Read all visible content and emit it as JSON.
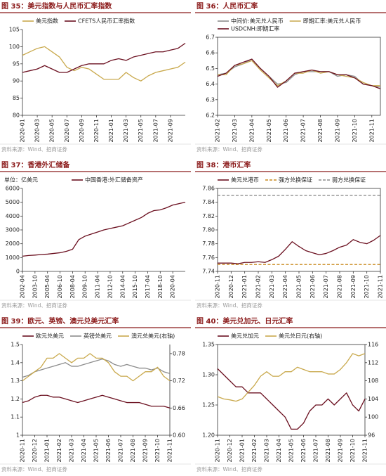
{
  "chart_data": [
    {
      "type": "line",
      "title": "图 35：美元指数与人民币汇率指数",
      "source": "资料来源：Wind、招商证券",
      "legend": "top",
      "frame": false,
      "categories": [
        "2020-01",
        null,
        "2020-03",
        null,
        "2020-05",
        null,
        "2020-07",
        null,
        "2020-09",
        null,
        "2020-11",
        null,
        "2021-01",
        null,
        "2021-03",
        null,
        "2021-05",
        null,
        "2021-07",
        null,
        "2021-09",
        null,
        null
      ],
      "series": [
        {
          "name": "美元指数",
          "color": "#c9a94d",
          "values": [
            97.5,
            98.5,
            99.5,
            100,
            98.5,
            97,
            94,
            93,
            94,
            93.5,
            92,
            90.5,
            90.5,
            90.5,
            92.5,
            91,
            90,
            91.5,
            92.5,
            93,
            93.5,
            94,
            95.5
          ]
        },
        {
          "name": "CFETS人民币汇率指数",
          "color": "#6b1020",
          "values": [
            92.5,
            93,
            93.5,
            94.5,
            93.5,
            92.5,
            92.5,
            93.5,
            94.5,
            95,
            95,
            95,
            96,
            96.5,
            96,
            97,
            97.5,
            98,
            98.5,
            98.5,
            99,
            99.5,
            101
          ]
        }
      ],
      "ylim": [
        80,
        105
      ],
      "yticks": [
        80,
        85,
        90,
        95,
        100,
        105
      ]
    },
    {
      "type": "line",
      "title": "图 36：人民币汇率",
      "source": "资料来源：Wind、招商证券",
      "legend": "top",
      "frame": true,
      "categories": [
        "2021-02",
        null,
        "2021-03",
        null,
        "2021-04",
        null,
        "2021-05",
        null,
        "2021-06",
        null,
        "2021-07",
        null,
        "2021-08",
        null,
        "2021-09",
        null,
        "2021-10",
        null,
        "2021-11",
        null
      ],
      "series": [
        {
          "name": "中间价:美元兑人民币",
          "color": "#8c8c8c",
          "values": [
            6.46,
            6.47,
            6.51,
            6.53,
            6.56,
            6.5,
            6.45,
            6.4,
            6.41,
            6.46,
            6.48,
            6.48,
            6.48,
            6.48,
            6.45,
            6.46,
            6.45,
            6.4,
            6.39,
            6.38
          ]
        },
        {
          "name": "即期汇率:美元兑人民币",
          "color": "#c9a94d",
          "values": [
            6.46,
            6.46,
            6.52,
            6.53,
            6.55,
            6.49,
            6.44,
            6.39,
            6.42,
            6.47,
            6.47,
            6.49,
            6.47,
            6.48,
            6.46,
            6.45,
            6.44,
            6.41,
            6.39,
            6.39
          ]
        },
        {
          "name": "USDCNH:即期汇率",
          "color": "#6b1020",
          "values": [
            6.45,
            6.47,
            6.52,
            6.54,
            6.56,
            6.5,
            6.45,
            6.38,
            6.42,
            6.47,
            6.48,
            6.49,
            6.48,
            6.48,
            6.46,
            6.46,
            6.44,
            6.4,
            6.39,
            6.37
          ]
        }
      ],
      "ylim": [
        6.2,
        6.7
      ],
      "yticks": [
        6.2,
        6.3,
        6.4,
        6.5,
        6.6,
        6.7
      ]
    },
    {
      "type": "line",
      "title": "图 37：香港外汇储备",
      "source": "资料来源：Wind、招商证券",
      "unit": "单位：亿美元",
      "legend": "top",
      "frame": false,
      "categories": [
        "2002-04",
        null,
        "2003-10",
        null,
        "2005-04",
        null,
        "2006-10",
        null,
        "2008-04",
        null,
        "2009-10",
        null,
        "2011-04",
        null,
        "2012-10",
        null,
        "2014-04",
        null,
        "2015-10",
        null,
        "2017-04",
        null,
        "2018-10",
        null,
        "2020-04",
        null,
        null
      ],
      "series": [
        {
          "name": "中国香港:外汇储备资产",
          "color": "#6b1020",
          "values": [
            1100,
            1150,
            1180,
            1220,
            1250,
            1300,
            1350,
            1450,
            1600,
            2300,
            2550,
            2700,
            2850,
            3000,
            3100,
            3200,
            3300,
            3500,
            3700,
            3900,
            4200,
            4400,
            4450,
            4600,
            4800,
            4900,
            5000
          ]
        }
      ],
      "ylim": [
        0,
        6000
      ],
      "yticks": [
        0,
        1000,
        2000,
        3000,
        4000,
        5000,
        6000
      ]
    },
    {
      "type": "line",
      "title": "图 38：港币汇率",
      "source": "资料来源：Wind、招商证券",
      "legend": "top",
      "frame": true,
      "categories": [
        "2020-11",
        null,
        "2020-12",
        null,
        "2021-01",
        null,
        "2021-02",
        null,
        "2021-03",
        null,
        "2021-04",
        null,
        "2021-05",
        null,
        "2021-06",
        null,
        "2021-07",
        null,
        "2021-08",
        null,
        "2021-09",
        null,
        "2021-10",
        null,
        "2021-11"
      ],
      "series": [
        {
          "name": "美元兑港币",
          "color": "#6b1020",
          "values": [
            7.752,
            7.752,
            7.752,
            7.751,
            7.753,
            7.753,
            7.754,
            7.753,
            7.757,
            7.762,
            7.772,
            7.783,
            7.776,
            7.77,
            7.767,
            7.764,
            7.766,
            7.77,
            7.775,
            7.778,
            7.786,
            7.782,
            7.78,
            7.785,
            7.792
          ]
        },
        {
          "name": "强方兑换保证",
          "color": "#c98a1e",
          "dashed": true,
          "values": [
            7.75,
            7.75,
            7.75,
            7.75,
            7.75,
            7.75,
            7.75,
            7.75,
            7.75,
            7.75,
            7.75,
            7.75,
            7.75,
            7.75,
            7.75,
            7.75,
            7.75,
            7.75,
            7.75,
            7.75,
            7.75,
            7.75,
            7.75,
            7.75,
            7.75
          ]
        },
        {
          "name": "弱方兑换保证",
          "color": "#8c8c8c",
          "dashed": true,
          "values": [
            7.85,
            7.85,
            7.85,
            7.85,
            7.85,
            7.85,
            7.85,
            7.85,
            7.85,
            7.85,
            7.85,
            7.85,
            7.85,
            7.85,
            7.85,
            7.85,
            7.85,
            7.85,
            7.85,
            7.85,
            7.85,
            7.85,
            7.85,
            7.85,
            7.85
          ]
        }
      ],
      "ylim": [
        7.74,
        7.86
      ],
      "yticks": [
        7.74,
        7.76,
        7.78,
        {
          "value": 7.8,
          "label": "7.80"
        },
        7.82,
        7.84,
        7.86
      ]
    },
    {
      "type": "line",
      "title": "图 39：欧元、英镑、澳元兑美元汇率",
      "source": "资料来源：Wind、招商证券",
      "legend": "top",
      "frame": false,
      "categories": [
        "2020-11",
        null,
        "2020-12",
        null,
        "2021-01",
        null,
        "2021-02",
        null,
        "2021-03",
        null,
        "2021-04",
        null,
        "2021-05",
        null,
        "2021-06",
        null,
        "2021-07",
        null,
        "2021-08",
        null,
        "2021-09",
        null,
        "2021-10",
        null,
        "2021-11"
      ],
      "series": [
        {
          "name": "欧元兑美元",
          "color": "#6b1020",
          "values": [
            1.18,
            1.19,
            1.21,
            1.22,
            1.22,
            1.21,
            1.21,
            1.2,
            1.19,
            1.18,
            1.19,
            1.2,
            1.21,
            1.22,
            1.21,
            1.2,
            1.19,
            1.18,
            1.18,
            1.18,
            1.17,
            1.16,
            1.16,
            1.16,
            1.15
          ]
        },
        {
          "name": "英镑兑美元",
          "color": "#8c8c8c",
          "values": [
            1.32,
            1.33,
            1.35,
            1.36,
            1.37,
            1.38,
            1.39,
            1.4,
            1.38,
            1.38,
            1.39,
            1.4,
            1.41,
            1.42,
            1.41,
            1.39,
            1.38,
            1.39,
            1.38,
            1.37,
            1.37,
            1.36,
            1.37,
            1.35,
            1.34
          ]
        },
        {
          "name": "澳元兑美元(右轴)",
          "color": "#c9a94d",
          "axis": "y2",
          "values": [
            0.72,
            0.73,
            0.74,
            0.75,
            0.77,
            0.77,
            0.78,
            0.77,
            0.76,
            0.77,
            0.77,
            0.78,
            0.77,
            0.77,
            0.76,
            0.74,
            0.73,
            0.73,
            0.72,
            0.73,
            0.74,
            0.74,
            0.75,
            0.73,
            0.72
          ]
        }
      ],
      "ylim": [
        1,
        1.5
      ],
      "yticks": [
        1,
        1.1,
        1.2,
        1.3,
        1.4,
        1.5
      ],
      "y2lim": [
        0.6,
        0.8
      ],
      "y2ticks": [
        {
          "value": 0.6,
          "label": "0.60"
        },
        0.66,
        0.72,
        0.78
      ]
    },
    {
      "type": "line",
      "title": "图 40：美元兑加元、日元汇率",
      "source": "资料来源：Wind、招商证券",
      "legend": "top",
      "frame": true,
      "categories": [
        "2020-11",
        null,
        "2020-12",
        null,
        "2021-01",
        null,
        "2021-02",
        null,
        "2021-03",
        null,
        "2021-04",
        null,
        "2021-05",
        null,
        "2021-06",
        null,
        "2021-07",
        null,
        "2021-08",
        null,
        "2021-09",
        null,
        "2021-10",
        null,
        "2021-11"
      ],
      "series": [
        {
          "name": "美元兑加元",
          "color": "#6b1020",
          "values": [
            1.31,
            1.3,
            1.29,
            1.28,
            1.28,
            1.27,
            1.27,
            1.27,
            1.26,
            1.25,
            1.24,
            1.23,
            1.21,
            1.21,
            1.22,
            1.24,
            1.25,
            1.25,
            1.26,
            1.25,
            1.26,
            1.27,
            1.25,
            1.24,
            1.26
          ]
        },
        {
          "name": "美元兑日元(右轴)",
          "color": "#c9a94d",
          "axis": "y2",
          "values": [
            104.5,
            104,
            103.8,
            103.5,
            104,
            105.5,
            107,
            109,
            110,
            109,
            109,
            110,
            110,
            111,
            110.5,
            110,
            110,
            110,
            109.5,
            109.5,
            110.5,
            112,
            114,
            113.5,
            114
          ]
        }
      ],
      "ylim": [
        1.2,
        1.35
      ],
      "yticks": [
        {
          "value": 1.2,
          "label": "1.20"
        },
        1.25,
        {
          "value": 1.3,
          "label": "1.30"
        },
        1.35
      ],
      "y2lim": [
        96,
        116
      ],
      "y2ticks": [
        96,
        100,
        104,
        108,
        112,
        116
      ]
    }
  ]
}
